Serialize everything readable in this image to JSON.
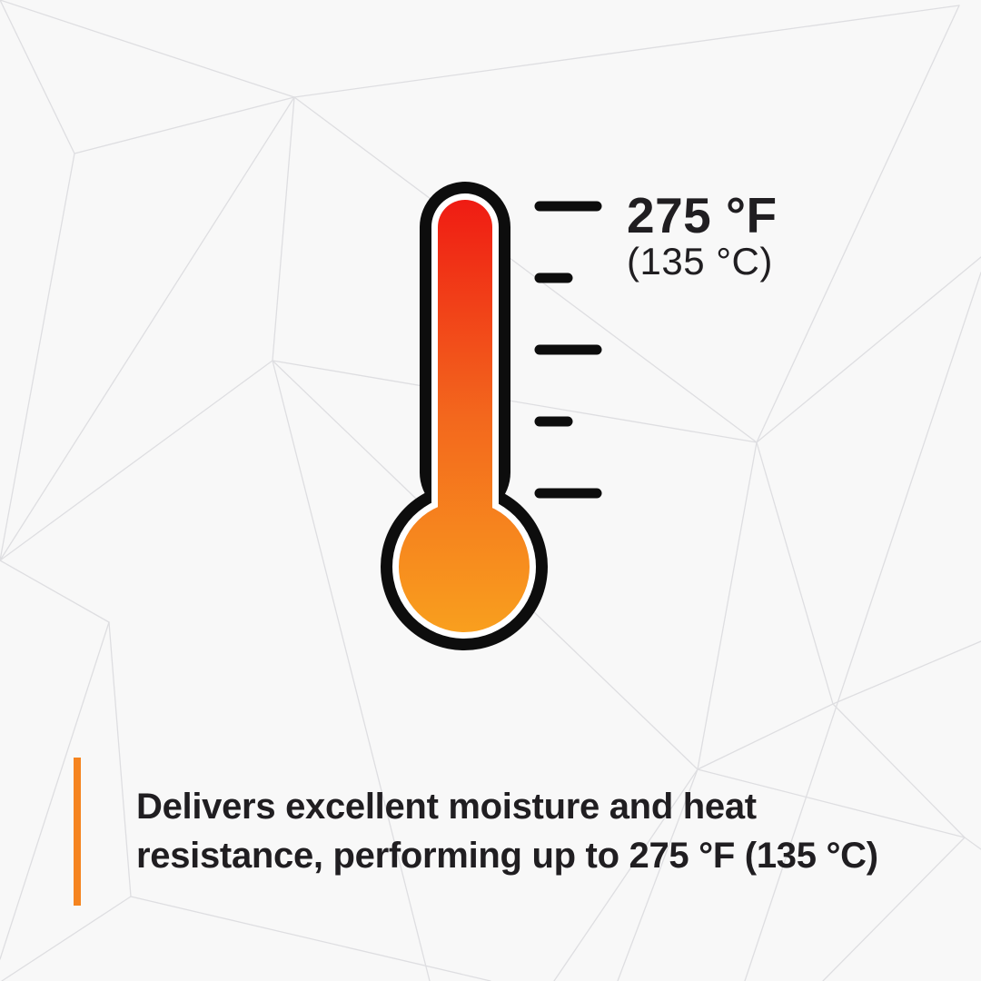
{
  "header": {
    "fahrenheit": "275 °F",
    "celsius": "(135 °C)"
  },
  "caption": {
    "line1": "Delivers excellent moisture and heat",
    "line2": "resistance, performing up to 275 °F (135 °C)"
  },
  "thermometer": {
    "tick_pattern": [
      "long",
      "short",
      "long",
      "short",
      "long"
    ]
  },
  "colors": {
    "background": "#F8F8F8",
    "mesh_line": "#DEDEE1",
    "outline_black": "#0D0D0D",
    "gradient_top_red": "#EF1A13",
    "gradient_mid_orange": "#F3671D",
    "gradient_bottom_orange": "#F9A01E",
    "accent_orange": "#F5841F",
    "text_ink": "#201E21"
  }
}
